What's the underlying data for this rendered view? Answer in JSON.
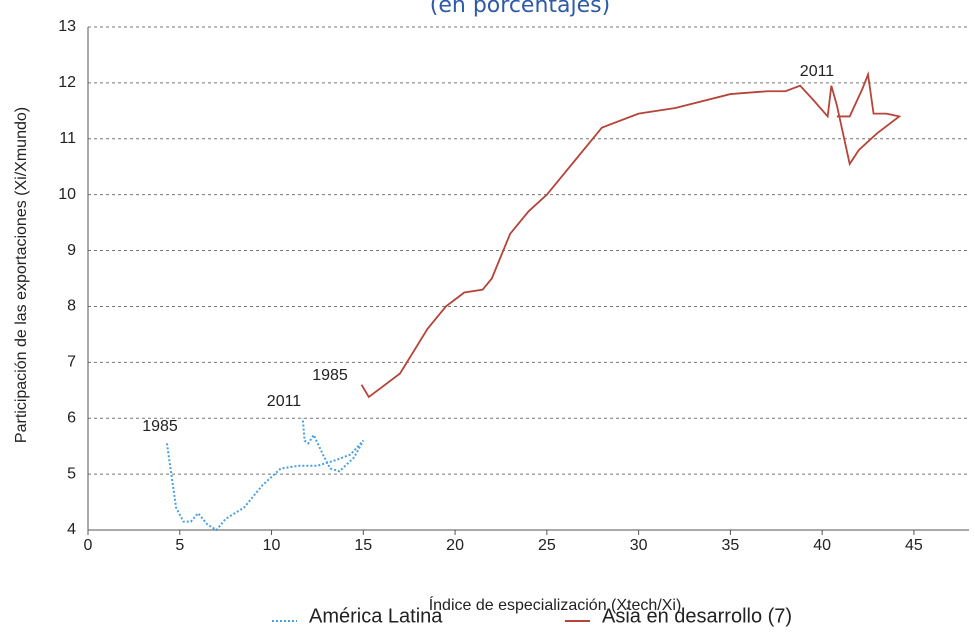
{
  "chart_data": {
    "type": "line",
    "subtitle": "(en porcentajes)",
    "xlabel": "Índice de especialización (Xtech/Xi)",
    "ylabel": "Participación de las exportaciones (Xi/Xmundo)",
    "xlim": [
      0,
      48
    ],
    "xticks": [
      0,
      5,
      10,
      15,
      20,
      25,
      30,
      35,
      40,
      45
    ],
    "ylim": [
      4,
      13
    ],
    "yticks": [
      4,
      5,
      6,
      7,
      8,
      9,
      10,
      11,
      12,
      13
    ],
    "grid": true,
    "annotations": [
      "1985",
      "2011",
      "1985",
      "2011"
    ],
    "series": [
      {
        "name": "América Latina",
        "color": "#4a9fe0",
        "style": "dotted",
        "x": [
          4.3,
          4.8,
          5.2,
          5.6,
          6,
          6.5,
          7,
          7.5,
          8.5,
          9.5,
          10.5,
          11.5,
          12.5,
          13.5,
          14.3,
          15,
          14.5,
          13.7,
          13.2,
          12.8,
          12.3,
          12,
          11.8,
          11.7
        ],
        "values": [
          5.55,
          4.4,
          4.15,
          4.15,
          4.3,
          4.1,
          4.0,
          4.2,
          4.4,
          4.8,
          5.1,
          5.15,
          5.15,
          5.25,
          5.35,
          5.6,
          5.3,
          5.05,
          5.1,
          5.35,
          5.7,
          5.55,
          5.6,
          6.0
        ]
      },
      {
        "name": "Asia en desarrollo (7)",
        "color": "#b5443a",
        "style": "solid",
        "x": [
          14.9,
          15.3,
          17,
          18.5,
          19.5,
          20.5,
          21.5,
          22,
          23,
          24,
          25,
          26.5,
          28,
          30,
          32,
          35,
          37,
          38,
          38.8,
          39.5,
          40.3,
          40.5,
          40.8,
          41.5,
          42,
          43,
          44.2,
          43.5,
          42.8,
          42.5,
          42.2,
          41.5,
          40.8
        ],
        "values": [
          6.6,
          6.38,
          6.8,
          7.6,
          8.0,
          8.25,
          8.3,
          8.5,
          9.3,
          9.7,
          10.0,
          10.6,
          11.2,
          11.45,
          11.55,
          11.8,
          11.85,
          11.85,
          11.95,
          11.7,
          11.4,
          11.95,
          11.6,
          10.55,
          10.8,
          11.1,
          11.4,
          11.45,
          11.45,
          12.15,
          11.9,
          11.4,
          11.4
        ]
      }
    ]
  }
}
